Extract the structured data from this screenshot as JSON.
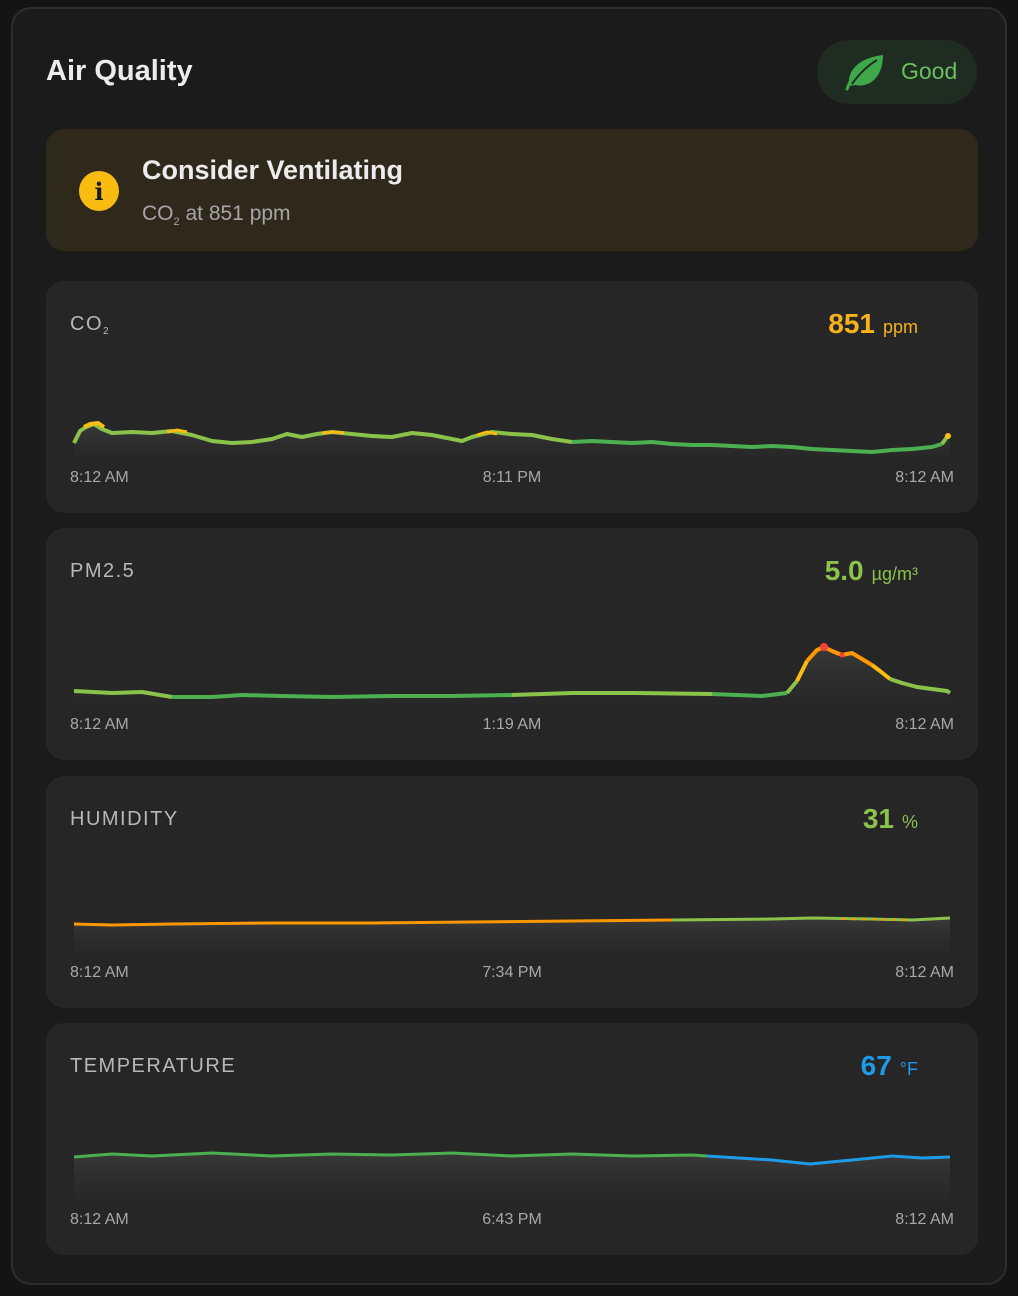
{
  "card": {
    "title": "Air Quality",
    "status": {
      "label": "Good",
      "icon": "leaf-icon",
      "color": "#69c05c"
    }
  },
  "alert": {
    "icon": "info-icon",
    "title": "Consider Ventilating",
    "sub_prefix": "CO",
    "sub_subscript": "2",
    "sub_suffix": "at 851 ppm"
  },
  "panels": [
    {
      "label": "CO",
      "label_sub": "2",
      "value": "851",
      "unit": "ppm",
      "value_color": "#f7b11c",
      "times": [
        "8:12 AM",
        "8:11 PM",
        "8:12 AM"
      ],
      "series_colors": [
        "#4caf50",
        "#8bc34a",
        "#fbbc12"
      ]
    },
    {
      "label": "PM2.5",
      "label_sub": "",
      "value": "5.0",
      "unit": "µg/m³",
      "value_color": "#8bc34a",
      "times": [
        "8:12 AM",
        "1:19 AM",
        "8:12 AM"
      ],
      "series_colors": [
        "#4caf50",
        "#8bc34a",
        "#fbbc12",
        "#ff9800",
        "#f44336"
      ]
    },
    {
      "label": "HUMIDITY",
      "label_sub": "",
      "value": "31",
      "unit": "%",
      "value_color": "#8bc34a",
      "times": [
        "8:12 AM",
        "7:34 PM",
        "8:12 AM"
      ],
      "series_colors": [
        "#ff9800",
        "#8bc34a"
      ]
    },
    {
      "label": "TEMPERATURE",
      "label_sub": "",
      "value": "67",
      "unit": "°F",
      "value_color": "#1e9be8",
      "times": [
        "8:12 AM",
        "6:43 PM",
        "8:12 AM"
      ],
      "series_colors": [
        "#4caf50",
        "#1e9be8"
      ]
    }
  ]
}
